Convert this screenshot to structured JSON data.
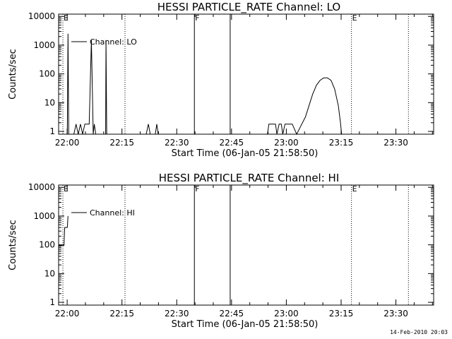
{
  "footer": {
    "timestamp": "14-Feb-2010 20:03"
  },
  "chart_data": [
    {
      "type": "line",
      "title": "HESSI PARTICLE_RATE Channel: LO",
      "xlabel": "Start Time (06-Jan-05 21:58:50)",
      "ylabel": "Counts/sec",
      "yscale": "log",
      "ylim": [
        0.8,
        12000
      ],
      "xlim_minutes": [
        -1.17,
        101.5
      ],
      "x_ticks": [
        "22:00",
        "22:15",
        "22:30",
        "22:45",
        "23:00",
        "23:15",
        "23:30"
      ],
      "x_tick_minutes": [
        1.17,
        16.17,
        31.17,
        46.17,
        61.17,
        76.17,
        91.17
      ],
      "y_ticks": [
        "1",
        "10",
        "100",
        "1000",
        "10000"
      ],
      "y_tick_values": [
        1,
        10,
        100,
        1000,
        10000
      ],
      "legend": {
        "label": "Channel: LO",
        "position": "top-left"
      },
      "series": [
        {
          "name": "Channel: LO",
          "points": [
            [
              1.2,
              0.8
            ],
            [
              1.4,
              2500
            ],
            [
              1.6,
              0.8
            ],
            [
              2.0,
              0.8
            ],
            [
              3.0,
              0.8
            ],
            [
              3.6,
              1.8
            ],
            [
              4.2,
              0.8
            ],
            [
              4.8,
              1.8
            ],
            [
              5.4,
              0.8
            ],
            [
              6.0,
              1.8
            ],
            [
              7.2,
              1.8
            ],
            [
              7.8,
              1500
            ],
            [
              8.3,
              0.8
            ],
            [
              8.6,
              1.8
            ],
            [
              9.0,
              0.8
            ],
            [
              11.7,
              0.8
            ],
            [
              11.8,
              1500
            ],
            [
              12.0,
              0.8
            ],
            [
              22.8,
              0.8
            ],
            [
              23.4,
              1.8
            ],
            [
              23.9,
              0.8
            ],
            [
              25.3,
              0.8
            ],
            [
              25.7,
              1.8
            ],
            [
              26.1,
              0.8
            ],
            [
              56.0,
              0.8
            ],
            [
              56.4,
              1.8
            ],
            [
              58.2,
              1.8
            ],
            [
              58.6,
              0.8
            ],
            [
              59.2,
              1.8
            ],
            [
              59.8,
              1.8
            ],
            [
              60.2,
              0.8
            ],
            [
              60.8,
              1.8
            ],
            [
              62.8,
              1.8
            ],
            [
              64.0,
              0.8
            ],
            [
              65.4,
              1.8
            ],
            [
              66.4,
              3.2
            ],
            [
              67.4,
              8
            ],
            [
              68.4,
              20
            ],
            [
              69.4,
              40
            ],
            [
              70.4,
              60
            ],
            [
              71.4,
              73
            ],
            [
              72.4,
              73
            ],
            [
              73.4,
              60
            ],
            [
              74.4,
              30
            ],
            [
              75.4,
              8
            ],
            [
              76.0,
              2
            ],
            [
              76.3,
              0.8
            ]
          ]
        }
      ],
      "markers": [
        {
          "label": "E",
          "minute": 0.0,
          "style": "dotted"
        },
        {
          "minute": 17.0,
          "style": "dotted"
        },
        {
          "label": "F",
          "minute": 36.0,
          "style": "solid"
        },
        {
          "minute": 45.8,
          "style": "solid"
        },
        {
          "label": "E",
          "minute": 79.0,
          "style": "dotted"
        },
        {
          "minute": 94.6,
          "style": "dotted"
        }
      ]
    },
    {
      "type": "line",
      "title": "HESSI PARTICLE_RATE Channel: HI",
      "xlabel": "Start Time (06-Jan-05 21:58:50)",
      "ylabel": "Counts/sec",
      "yscale": "log",
      "ylim": [
        0.8,
        12000
      ],
      "xlim_minutes": [
        -1.17,
        101.5
      ],
      "x_ticks": [
        "22:00",
        "22:15",
        "22:30",
        "22:45",
        "23:00",
        "23:15",
        "23:30"
      ],
      "x_tick_minutes": [
        1.17,
        16.17,
        31.17,
        46.17,
        61.17,
        76.17,
        91.17
      ],
      "y_ticks": [
        "1",
        "10",
        "100",
        "1000",
        "10000"
      ],
      "y_tick_values": [
        1,
        10,
        100,
        1000,
        10000
      ],
      "legend": {
        "label": "Channel: HI",
        "position": "top-left"
      },
      "series": [
        {
          "name": "Channel: HI",
          "points": [
            [
              -1.1,
              95
            ],
            [
              0.3,
              95
            ],
            [
              0.5,
              400
            ],
            [
              1.2,
              400
            ],
            [
              1.4,
              1000
            ]
          ]
        }
      ],
      "markers": [
        {
          "label": "E",
          "minute": 0.0,
          "style": "dotted"
        },
        {
          "minute": 17.0,
          "style": "dotted"
        },
        {
          "label": "F",
          "minute": 36.0,
          "style": "solid"
        },
        {
          "minute": 45.8,
          "style": "solid"
        },
        {
          "label": "E",
          "minute": 79.0,
          "style": "dotted"
        },
        {
          "minute": 94.6,
          "style": "dotted"
        }
      ]
    }
  ]
}
